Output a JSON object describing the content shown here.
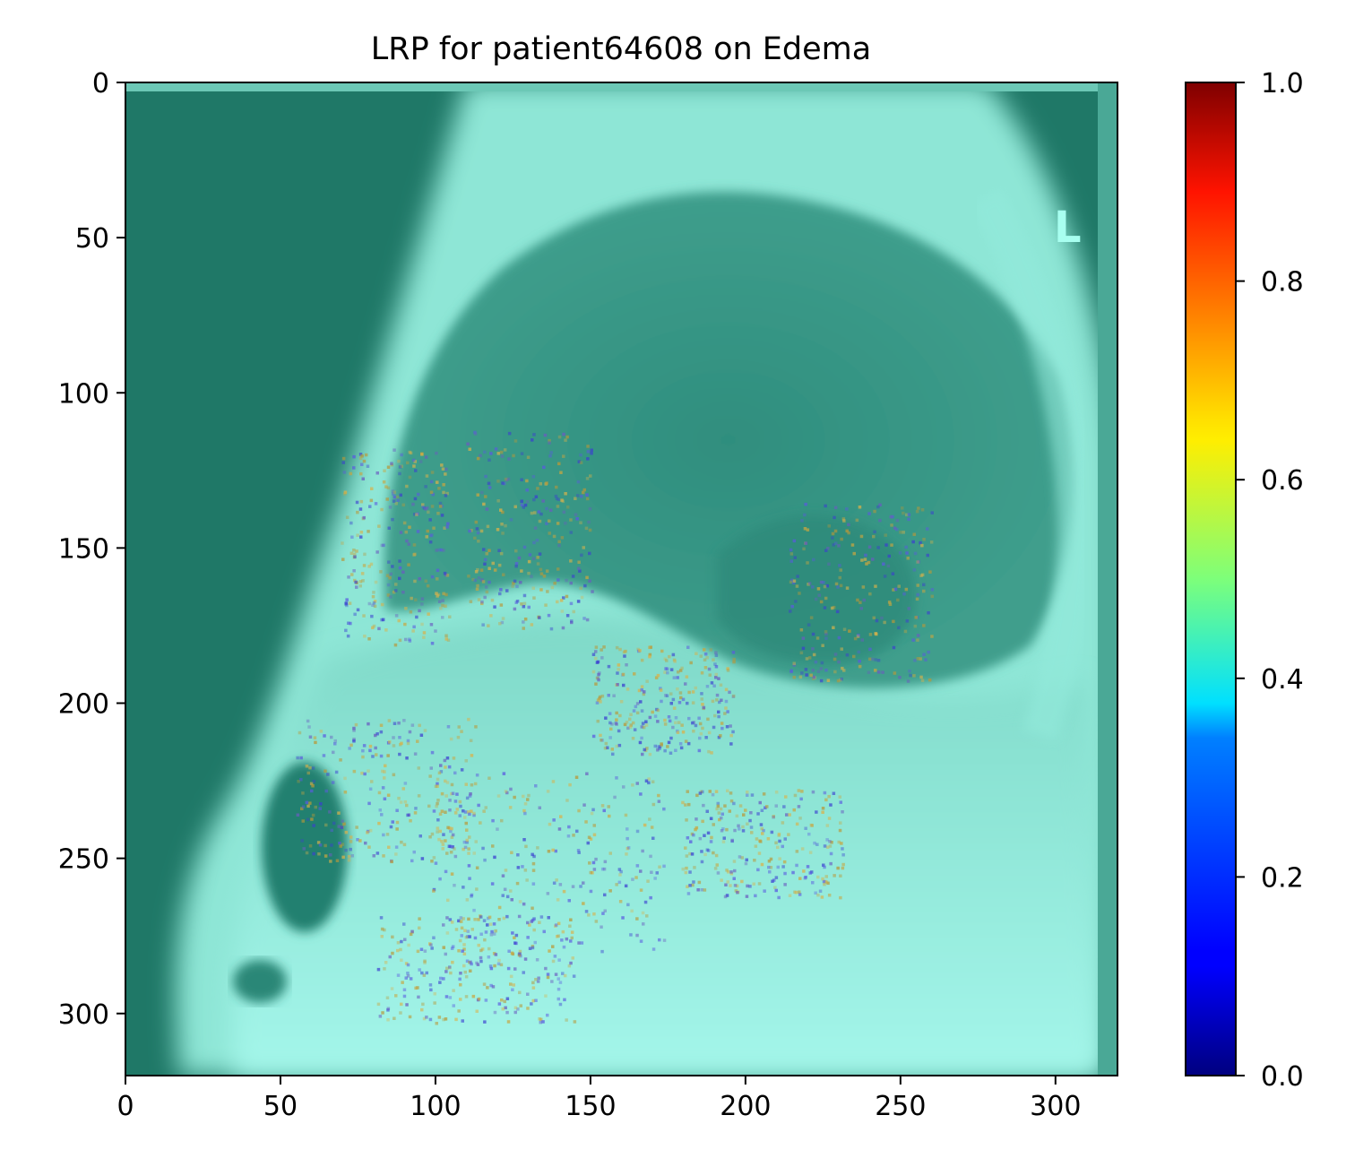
{
  "chart_data": {
    "type": "heatmap",
    "title": "LRP for patient64608 on Edema",
    "xlabel": "",
    "ylabel": "",
    "xlim": [
      0,
      320
    ],
    "ylim": [
      320,
      0
    ],
    "x_ticks": [
      {
        "value": 0,
        "label": "0"
      },
      {
        "value": 50,
        "label": "50"
      },
      {
        "value": 100,
        "label": "100"
      },
      {
        "value": 150,
        "label": "150"
      },
      {
        "value": 200,
        "label": "200"
      },
      {
        "value": 250,
        "label": "250"
      },
      {
        "value": 300,
        "label": "300"
      }
    ],
    "y_ticks": [
      {
        "value": 0,
        "label": "0"
      },
      {
        "value": 50,
        "label": "50"
      },
      {
        "value": 100,
        "label": "100"
      },
      {
        "value": 150,
        "label": "150"
      },
      {
        "value": 200,
        "label": "200"
      },
      {
        "value": 250,
        "label": "250"
      },
      {
        "value": 300,
        "label": "300"
      }
    ],
    "colorbar": {
      "colormap": "jet",
      "range": [
        0.0,
        1.0
      ],
      "ticks": [
        {
          "value": 0.0,
          "label": "0.0"
        },
        {
          "value": 0.2,
          "label": "0.2"
        },
        {
          "value": 0.4,
          "label": "0.4"
        },
        {
          "value": 0.6,
          "label": "0.6"
        },
        {
          "value": 0.8,
          "label": "0.8"
        },
        {
          "value": 1.0,
          "label": "1.0"
        }
      ]
    },
    "image": {
      "description_colors": {
        "dark": "#1c7566",
        "mid": "#4fb3a0",
        "bright": "#9ef5e6"
      },
      "marker_text": "L"
    }
  }
}
